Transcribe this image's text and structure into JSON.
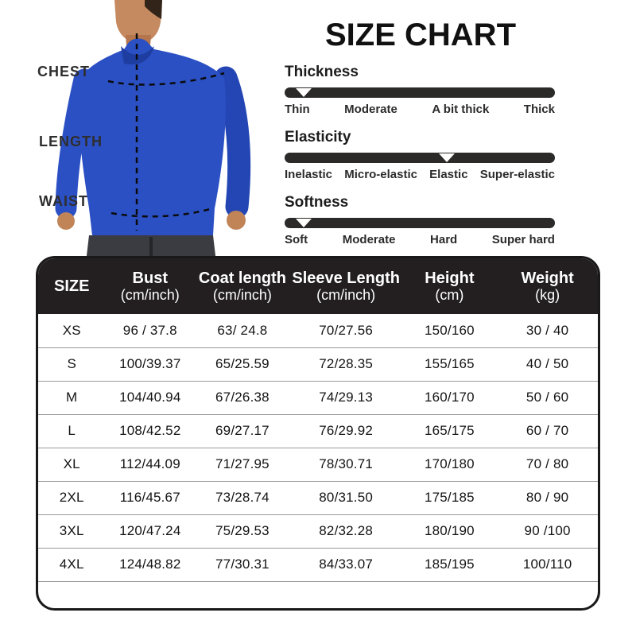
{
  "title": "SIZE CHART",
  "measurement_diagram": {
    "labels": [
      "CHEST",
      "LENGTH",
      "WAIST"
    ]
  },
  "fabric_attributes": [
    {
      "name": "Thickness",
      "levels": [
        "Thin",
        "Moderate",
        "A bit thick",
        "Thick"
      ],
      "marker_percent": 7
    },
    {
      "name": "Elasticity",
      "levels": [
        "Inelastic",
        "Micro-elastic",
        "Elastic",
        "Super-elastic"
      ],
      "marker_percent": 60
    },
    {
      "name": "Softness",
      "levels": [
        "Soft",
        "Moderate",
        "Hard",
        "Super hard"
      ],
      "marker_percent": 7
    }
  ],
  "table": {
    "headers": [
      {
        "line1": "SIZE",
        "line2": ""
      },
      {
        "line1": "Bust",
        "line2": "(cm/inch)"
      },
      {
        "line1": "Coat length",
        "line2": "(cm/inch)"
      },
      {
        "line1": "Sleeve Length",
        "line2": "(cm/inch)"
      },
      {
        "line1": "Height",
        "line2": "(cm)"
      },
      {
        "line1": "Weight",
        "line2": "(kg)"
      }
    ],
    "rows": [
      [
        "XS",
        "96 / 37.8",
        "63/ 24.8",
        "70/27.56",
        "150/160",
        "30 / 40"
      ],
      [
        "S",
        "100/39.37",
        "65/25.59",
        "72/28.35",
        "155/165",
        "40 / 50"
      ],
      [
        "M",
        "104/40.94",
        "67/26.38",
        "74/29.13",
        "160/170",
        "50 / 60"
      ],
      [
        "L",
        "108/42.52",
        "69/27.17",
        "76/29.92",
        "165/175",
        "60 / 70"
      ],
      [
        "XL",
        "112/44.09",
        "71/27.95",
        "78/30.71",
        "170/180",
        "70 / 80"
      ],
      [
        "2XL",
        "116/45.67",
        "73/28.74",
        "80/31.50",
        "175/185",
        "80 / 90"
      ],
      [
        "3XL",
        "120/47.24",
        "75/29.53",
        "82/32.28",
        "180/190",
        "90 /100"
      ],
      [
        "4XL",
        "124/48.82",
        "77/30.31",
        "84/33.07",
        "185/195",
        "100/110"
      ]
    ]
  },
  "colors": {
    "hoodie_blue": "#2b50c4",
    "scale_bar": "#2b2a29",
    "table_header_bg": "#231f20",
    "row_divider": "#9a9a9a",
    "text": "#141414"
  }
}
